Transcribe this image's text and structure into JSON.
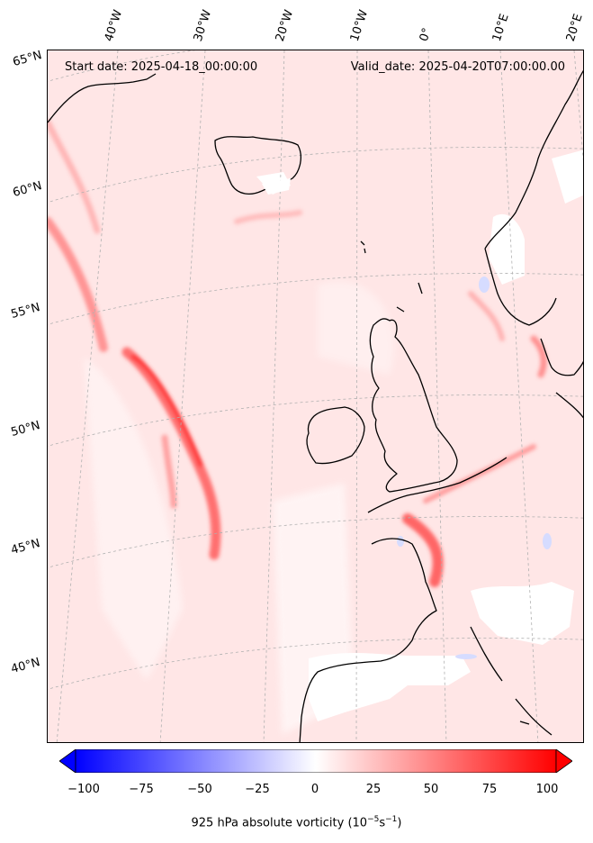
{
  "header": {
    "start_date": "Start date: 2025-04-18_00:00:00",
    "valid_date": "Valid_date: 2025-04-20T07:00:00.00"
  },
  "lon_labels": [
    "40°W",
    "30°W",
    "20°W",
    "10°W",
    "0°",
    "10°E",
    "20°E"
  ],
  "lat_labels": [
    "65°N",
    "60°N",
    "55°N",
    "50°N",
    "45°N",
    "40°N"
  ],
  "colorbar": {
    "ticks": [
      "−100",
      "−75",
      "−50",
      "−25",
      "0",
      "25",
      "50",
      "75",
      "100"
    ],
    "range": [
      -100,
      100
    ],
    "low_color": "#0000ff",
    "mid_color": "#ffffff",
    "high_color": "#ff0000",
    "title_main": "925 hPa absolute vorticity (10",
    "title_exp1": "−5",
    "title_mid": "s",
    "title_exp2": "−1",
    "title_end": ")"
  },
  "colors": {
    "background_field": "#ffe6e6",
    "coastline": "#000000",
    "gridline": "#b0b0b0"
  }
}
